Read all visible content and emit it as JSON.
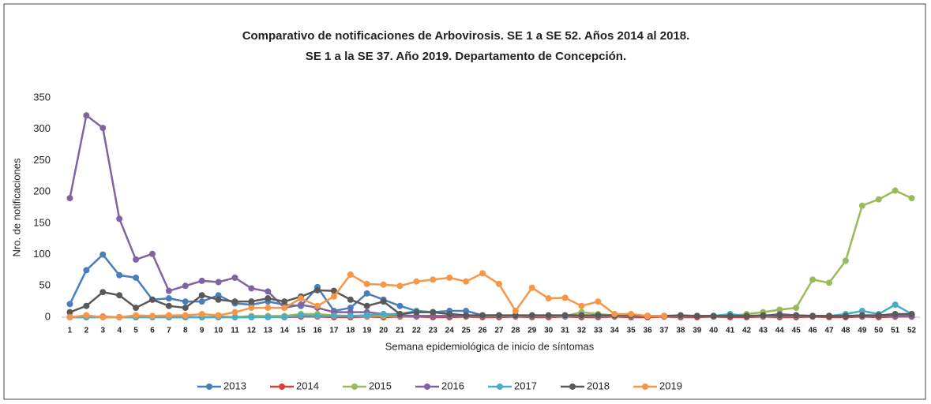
{
  "chart_data": {
    "type": "line",
    "title": "Comparativo de notificaciones de Arbovirosis. SE 1 a SE 52. Años 2014 al 2018.",
    "subtitle": "SE 1 a la SE 37. Año 2019. Departamento de Concepción.",
    "y_label": "Nro. de notificaciones",
    "x_label": "Semana epidemiológica de inicio de síntomas",
    "categories": [
      "1",
      "2",
      "3",
      "4",
      "5",
      "6",
      "7",
      "8",
      "9",
      "10",
      "11",
      "12",
      "13",
      "14",
      "15",
      "16",
      "17",
      "18",
      "19",
      "20",
      "21",
      "22",
      "23",
      "24",
      "25",
      "26",
      "27",
      "28",
      "29",
      "30",
      "31",
      "32",
      "33",
      "34",
      "35",
      "36",
      "37",
      "38",
      "39",
      "40",
      "41",
      "42",
      "43",
      "44",
      "45",
      "46",
      "47",
      "48",
      "49",
      "50",
      "51",
      "52"
    ],
    "ylim": [
      0,
      350
    ],
    "yticks": [
      0,
      50,
      100,
      150,
      200,
      250,
      300,
      350
    ],
    "grid": false,
    "legend": "bottom",
    "series": [
      {
        "name": "2013",
        "color": "#4a7ebb",
        "values": [
          21,
          75,
          100,
          67,
          63,
          28,
          30,
          25,
          25,
          35,
          22,
          20,
          25,
          20,
          18,
          48,
          10,
          15,
          38,
          28,
          18,
          10,
          8,
          10,
          10,
          3,
          3,
          2,
          2,
          2,
          2,
          2,
          2,
          1,
          1,
          1,
          1,
          1,
          1,
          1,
          1,
          1,
          1,
          1,
          1,
          1,
          1,
          1,
          1,
          1,
          1,
          1
        ]
      },
      {
        "name": "2014",
        "color": "#d9403a",
        "values": [
          0,
          0,
          1,
          0,
          0,
          1,
          0,
          0,
          0,
          1,
          0,
          0,
          1,
          0,
          1,
          1,
          0,
          0,
          1,
          0,
          1,
          1,
          0,
          0,
          1,
          0,
          0,
          1,
          0,
          0,
          1,
          0,
          0,
          1,
          0,
          0,
          1,
          0,
          0,
          1,
          0,
          0,
          1,
          0,
          0,
          1,
          0,
          0,
          1,
          0,
          1,
          1
        ]
      },
      {
        "name": "2015",
        "color": "#9bbb59",
        "values": [
          0,
          0,
          0,
          0,
          0,
          0,
          0,
          0,
          0,
          0,
          0,
          2,
          2,
          2,
          5,
          5,
          3,
          2,
          2,
          2,
          2,
          2,
          2,
          2,
          2,
          2,
          2,
          2,
          2,
          2,
          2,
          8,
          5,
          3,
          2,
          2,
          2,
          2,
          2,
          2,
          2,
          5,
          8,
          12,
          15,
          60,
          55,
          90,
          178,
          188,
          202,
          190
        ]
      },
      {
        "name": "2016",
        "color": "#8064a2",
        "values": [
          190,
          322,
          302,
          157,
          92,
          101,
          42,
          50,
          58,
          56,
          63,
          46,
          41,
          15,
          20,
          15,
          8,
          8,
          8,
          5,
          3,
          2,
          2,
          2,
          2,
          2,
          2,
          2,
          2,
          2,
          2,
          2,
          2,
          2,
          2,
          2,
          2,
          2,
          2,
          2,
          2,
          2,
          2,
          5,
          3,
          2,
          2,
          2,
          2,
          2,
          2,
          2
        ]
      },
      {
        "name": "2017",
        "color": "#4bacc6",
        "values": [
          0,
          0,
          0,
          0,
          0,
          0,
          0,
          0,
          0,
          0,
          0,
          0,
          0,
          0,
          3,
          2,
          2,
          2,
          3,
          5,
          5,
          10,
          8,
          5,
          3,
          2,
          2,
          2,
          2,
          2,
          2,
          2,
          2,
          2,
          2,
          2,
          2,
          2,
          2,
          2,
          5,
          2,
          2,
          2,
          2,
          2,
          2,
          5,
          10,
          5,
          20,
          5
        ]
      },
      {
        "name": "2018",
        "color": "#595959",
        "values": [
          8,
          18,
          40,
          35,
          15,
          28,
          18,
          15,
          35,
          28,
          25,
          25,
          30,
          25,
          33,
          43,
          42,
          28,
          18,
          25,
          5,
          8,
          8,
          5,
          3,
          3,
          3,
          3,
          3,
          3,
          3,
          3,
          3,
          3,
          3,
          2,
          2,
          3,
          2,
          2,
          2,
          2,
          3,
          3,
          3,
          2,
          2,
          2,
          3,
          3,
          5,
          5
        ]
      },
      {
        "name": "2019",
        "color": "#f79646",
        "values": [
          0,
          3,
          0,
          0,
          3,
          2,
          3,
          3,
          5,
          3,
          8,
          15,
          15,
          15,
          30,
          18,
          33,
          68,
          53,
          52,
          50,
          57,
          60,
          63,
          57,
          70,
          53,
          10,
          47,
          30,
          31,
          18,
          25,
          5,
          5,
          2,
          2,
          null,
          null,
          null,
          null,
          null,
          null,
          null,
          null,
          null,
          null,
          null,
          null,
          null,
          null,
          null
        ]
      }
    ]
  }
}
